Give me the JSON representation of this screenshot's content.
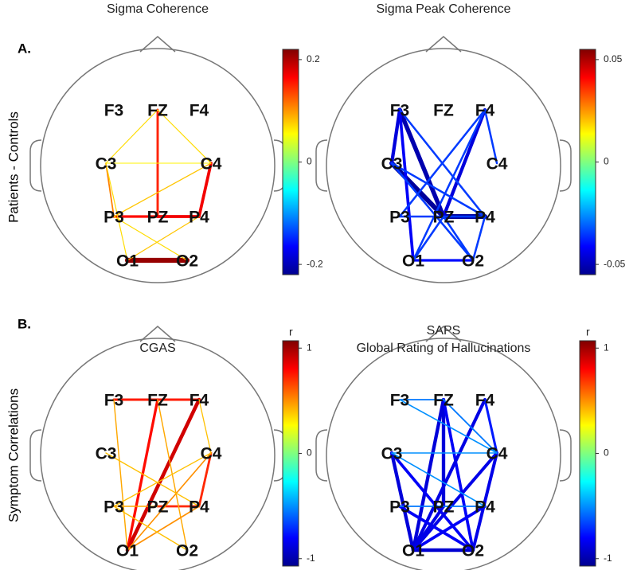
{
  "row_labels": [
    "Patients - Controls",
    "Symptom Correlations"
  ],
  "panel_letters": [
    "A.",
    "B."
  ],
  "electrodes": [
    "F3",
    "FZ",
    "F4",
    "C3",
    "C4",
    "P3",
    "PZ",
    "P4",
    "O1",
    "O2"
  ],
  "panels": [
    {
      "title": [
        "Sigma Coherence"
      ],
      "clim": [
        -0.22,
        0.22
      ],
      "colorbar_ticks": [
        0.2,
        0,
        -0.2
      ],
      "edges": [
        {
          "from": "FZ",
          "to": "PZ",
          "value": 0.15
        },
        {
          "from": "C4",
          "to": "P4",
          "value": 0.17
        },
        {
          "from": "C3",
          "to": "P3",
          "value": 0.11
        },
        {
          "from": "P3",
          "to": "PZ",
          "value": 0.16
        },
        {
          "from": "PZ",
          "to": "P4",
          "value": 0.17
        },
        {
          "from": "O1",
          "to": "O2",
          "value": 0.21
        },
        {
          "from": "C3",
          "to": "FZ",
          "value": 0.07
        },
        {
          "from": "FZ",
          "to": "C4",
          "value": 0.07
        },
        {
          "from": "C3",
          "to": "C4",
          "value": 0.06
        },
        {
          "from": "C3",
          "to": "O1",
          "value": 0.07
        },
        {
          "from": "P4",
          "to": "O1",
          "value": 0.08
        },
        {
          "from": "C4",
          "to": "P3",
          "value": 0.08
        },
        {
          "from": "P3",
          "to": "O2",
          "value": 0.07
        }
      ]
    },
    {
      "title": [
        "Sigma Peak Coherence"
      ],
      "clim": [
        -0.055,
        0.055
      ],
      "colorbar_ticks": [
        0.05,
        0,
        -0.05
      ],
      "edges": [
        {
          "from": "F3",
          "to": "PZ",
          "value": -0.05
        },
        {
          "from": "C3",
          "to": "PZ",
          "value": -0.052
        },
        {
          "from": "PZ",
          "to": "P4",
          "value": -0.052
        },
        {
          "from": "F3",
          "to": "C3",
          "value": -0.045
        },
        {
          "from": "F3",
          "to": "O1",
          "value": -0.042
        },
        {
          "from": "F4",
          "to": "PZ",
          "value": -0.045
        },
        {
          "from": "O1",
          "to": "O2",
          "value": -0.04
        },
        {
          "from": "F3",
          "to": "P4",
          "value": -0.035
        },
        {
          "from": "F4",
          "to": "O1",
          "value": -0.035
        },
        {
          "from": "F4",
          "to": "P3",
          "value": -0.035
        },
        {
          "from": "C3",
          "to": "O2",
          "value": -0.035
        },
        {
          "from": "P3",
          "to": "P4",
          "value": -0.035
        },
        {
          "from": "PZ",
          "to": "O1",
          "value": -0.035
        },
        {
          "from": "PZ",
          "to": "O2",
          "value": -0.035
        },
        {
          "from": "P4",
          "to": "O2",
          "value": -0.035
        },
        {
          "from": "F4",
          "to": "C4",
          "value": -0.035
        },
        {
          "from": "C3",
          "to": "P4",
          "value": -0.035
        }
      ]
    },
    {
      "title": [
        "CGAS"
      ],
      "clim": [
        -1.07,
        1.07
      ],
      "colorbar_ticks": [
        1,
        0,
        -1
      ],
      "colorbar_label": "r",
      "edges": [
        {
          "from": "F3",
          "to": "F4",
          "value": 0.75
        },
        {
          "from": "FZ",
          "to": "O1",
          "value": 0.78
        },
        {
          "from": "F4",
          "to": "O1",
          "value": 0.9
        },
        {
          "from": "C4",
          "to": "P4",
          "value": 0.72
        },
        {
          "from": "PZ",
          "to": "P4",
          "value": 0.72
        },
        {
          "from": "F3",
          "to": "O1",
          "value": 0.45
        },
        {
          "from": "FZ",
          "to": "O2",
          "value": 0.45
        },
        {
          "from": "C4",
          "to": "O1",
          "value": 0.5
        },
        {
          "from": "P4",
          "to": "O1",
          "value": 0.5
        },
        {
          "from": "C3",
          "to": "P4",
          "value": 0.4
        },
        {
          "from": "F4",
          "to": "C4",
          "value": 0.4
        },
        {
          "from": "C4",
          "to": "P3",
          "value": 0.4
        },
        {
          "from": "P3",
          "to": "O2",
          "value": 0.4
        },
        {
          "from": "P3",
          "to": "PZ",
          "value": 0.45
        }
      ]
    },
    {
      "title": [
        "SAPS",
        "Global Rating of Hallucinations"
      ],
      "clim": [
        -1.07,
        1.07
      ],
      "colorbar_ticks": [
        1,
        0,
        -1
      ],
      "colorbar_label": "r",
      "edges": [
        {
          "from": "FZ",
          "to": "O1",
          "value": -0.88
        },
        {
          "from": "FZ",
          "to": "PZ",
          "value": -0.88
        },
        {
          "from": "FZ",
          "to": "O2",
          "value": -0.82
        },
        {
          "from": "F4",
          "to": "O1",
          "value": -0.86
        },
        {
          "from": "C3",
          "to": "O1",
          "value": -0.88
        },
        {
          "from": "C3",
          "to": "O2",
          "value": -0.82
        },
        {
          "from": "C4",
          "to": "O1",
          "value": -0.85
        },
        {
          "from": "C4",
          "to": "O2",
          "value": -0.85
        },
        {
          "from": "O1",
          "to": "O2",
          "value": -0.9
        },
        {
          "from": "P3",
          "to": "O2",
          "value": -0.82
        },
        {
          "from": "PZ",
          "to": "O1",
          "value": -0.85
        },
        {
          "from": "P4",
          "to": "O1",
          "value": -0.82
        },
        {
          "from": "F4",
          "to": "C4",
          "value": -0.75
        },
        {
          "from": "F3",
          "to": "FZ",
          "value": -0.55
        },
        {
          "from": "FZ",
          "to": "C4",
          "value": -0.55
        },
        {
          "from": "F3",
          "to": "C4",
          "value": -0.5
        },
        {
          "from": "C3",
          "to": "C4",
          "value": -0.5
        },
        {
          "from": "C3",
          "to": "P4",
          "value": -0.5
        },
        {
          "from": "P3",
          "to": "P4",
          "value": -0.55
        }
      ]
    }
  ]
}
